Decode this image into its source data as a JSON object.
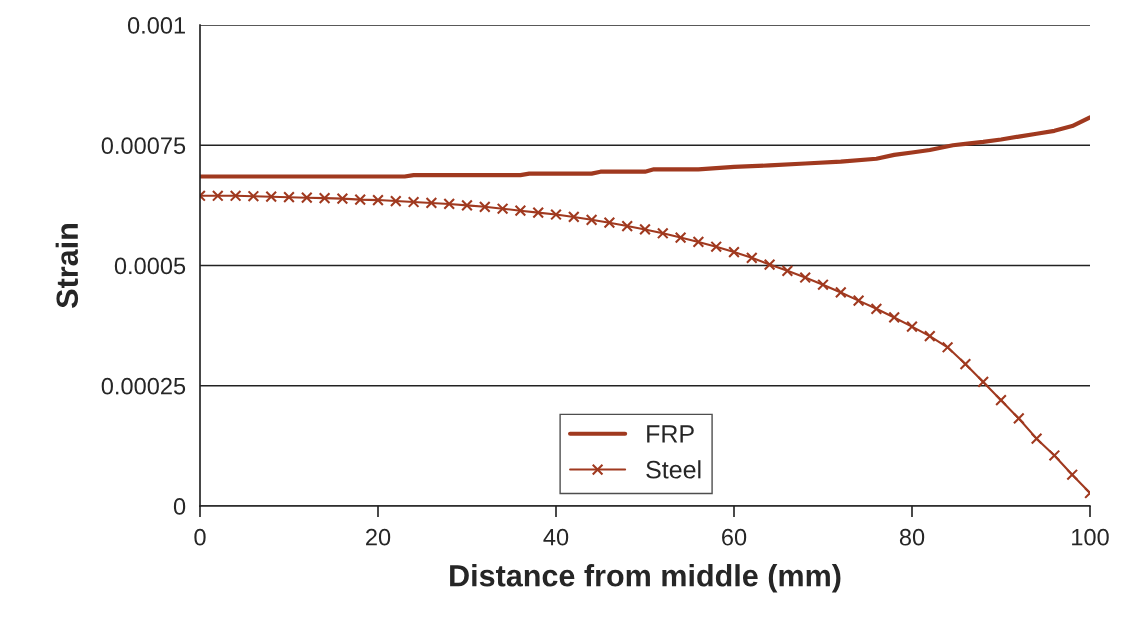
{
  "chart_data": {
    "type": "line",
    "xlabel": "Distance from middle (mm)",
    "ylabel": "Strain",
    "xlim": [
      0,
      100
    ],
    "xticks": [
      0,
      20,
      40,
      60,
      80,
      100
    ],
    "ylim": [
      0,
      0.001
    ],
    "yticks": [
      0,
      0.00025,
      0.0005,
      0.00075,
      0.001
    ],
    "grid": "y",
    "legend": "bottom",
    "series": [
      {
        "name": "FRP",
        "color": "#a0391f",
        "marker": "none",
        "x": [
          0,
          23,
          24,
          36,
          37,
          44,
          45,
          50,
          51,
          56,
          60,
          64,
          68,
          72,
          76,
          78,
          80,
          82,
          84.6,
          86,
          88,
          90,
          92,
          94,
          96,
          98,
          100
        ],
        "values": [
          0.000685,
          0.000685,
          0.000688,
          0.000688,
          0.000691,
          0.000691,
          0.000695,
          0.000695,
          0.0007,
          0.0007,
          0.000705,
          0.000708,
          0.000712,
          0.000716,
          0.000722,
          0.00073,
          0.000735,
          0.00074,
          0.00075,
          0.000753,
          0.000757,
          0.000762,
          0.000768,
          0.000774,
          0.00078,
          0.00079,
          0.000808
        ]
      },
      {
        "name": "Steel",
        "color": "#a0391f",
        "marker": "cross",
        "x": [
          0,
          2,
          4,
          6,
          8,
          10,
          12,
          14,
          16,
          18,
          20,
          22,
          24,
          26,
          28,
          30,
          32,
          34,
          36,
          38,
          40,
          42,
          44,
          46,
          48,
          50,
          52,
          54,
          56,
          58,
          60,
          62,
          64,
          66,
          68,
          70,
          72,
          74,
          76,
          78,
          80,
          82,
          84,
          86,
          88,
          90,
          92,
          94,
          96,
          98,
          100
        ],
        "values": [
          0.000645,
          0.000645,
          0.000645,
          0.000644,
          0.000643,
          0.000642,
          0.000641,
          0.00064,
          0.000639,
          0.000637,
          0.000636,
          0.000634,
          0.000632,
          0.00063,
          0.000628,
          0.000625,
          0.000622,
          0.000618,
          0.000614,
          0.00061,
          0.000606,
          0.000601,
          0.000595,
          0.000589,
          0.000582,
          0.000575,
          0.000567,
          0.000558,
          0.000549,
          0.000539,
          0.000528,
          0.000516,
          0.000502,
          0.000489,
          0.000475,
          0.00046,
          0.000444,
          0.000427,
          0.00041,
          0.000392,
          0.000373,
          0.000353,
          0.00033,
          0.000295,
          0.000258,
          0.00022,
          0.000182,
          0.00014,
          0.000105,
          6.5e-05,
          2.7e-05
        ]
      }
    ]
  }
}
